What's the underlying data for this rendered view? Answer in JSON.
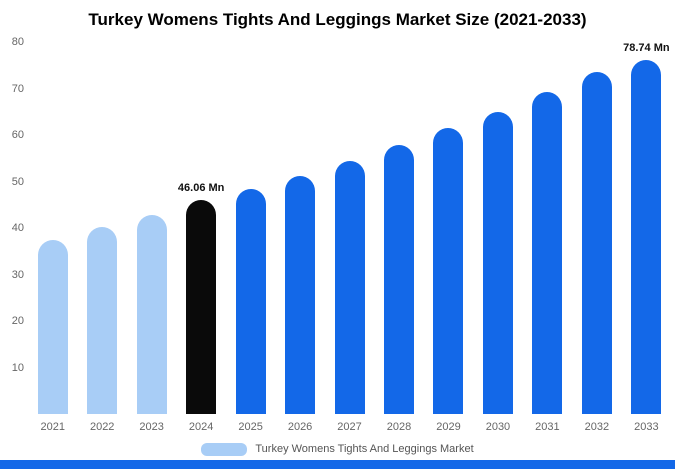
{
  "page": {
    "title": "Turkey Womens Tights And Leggings Market Size (2021-2033)"
  },
  "legend": {
    "label": "Turkey Womens Tights And Leggings Market",
    "swatch_color": "#a8cdf6"
  },
  "colors": {
    "light_blue": "#a8cdf6",
    "blue": "#1368e8",
    "black": "#0a0a0a",
    "axis_text": "#666666",
    "footer_bar": "#1368e8"
  },
  "chart_data": {
    "type": "bar",
    "title": "Turkey Womens Tights And Leggings Market Size (2021-2033)",
    "xlabel": "",
    "ylabel": "",
    "unit": "Mn",
    "categories": [
      "2021",
      "2022",
      "2023",
      "2024",
      "2025",
      "2026",
      "2027",
      "2028",
      "2029",
      "2030",
      "2031",
      "2032",
      "2033"
    ],
    "values": [
      37.5,
      40.2,
      42.8,
      46.06,
      48.3,
      51.2,
      54.5,
      57.8,
      61.5,
      65.0,
      69.3,
      73.6,
      78.74
    ],
    "bar_colors": [
      "#a8cdf6",
      "#a8cdf6",
      "#a8cdf6",
      "#0a0a0a",
      "#1368e8",
      "#1368e8",
      "#1368e8",
      "#1368e8",
      "#1368e8",
      "#1368e8",
      "#1368e8",
      "#1368e8",
      "#1368e8"
    ],
    "data_labels": [
      "",
      "",
      "",
      "46.06 Mn",
      "",
      "",
      "",
      "",
      "",
      "",
      "",
      "",
      "78.74 Mn"
    ],
    "y_ticks": [
      10,
      20,
      30,
      40,
      50,
      60,
      70,
      80
    ],
    "ylim": [
      0,
      80
    ],
    "grid": false,
    "legend_entries": [
      "Turkey Womens Tights And Leggings Market"
    ],
    "legend_position": "bottom"
  }
}
